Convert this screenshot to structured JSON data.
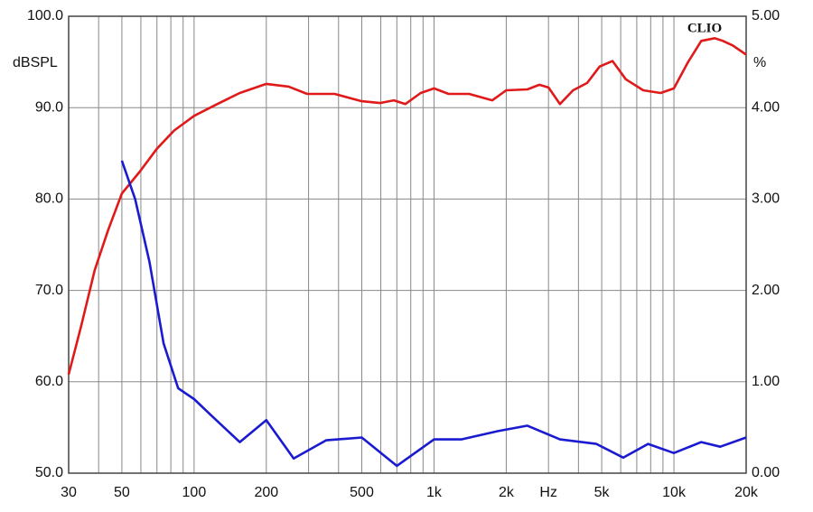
{
  "chart_data": {
    "type": "line",
    "xscale": "log",
    "watermark": "CLIO",
    "y_label": "dBSPL",
    "y2_label": "%",
    "xlim": [
      30,
      20000
    ],
    "ylim": [
      50,
      100
    ],
    "y2lim": [
      0,
      5
    ],
    "grid": true,
    "xticks": [
      30,
      50,
      100,
      200,
      500,
      {
        "value": 1000,
        "label": "1k"
      },
      {
        "value": 2000,
        "label": "2k"
      },
      {
        "value": 3000,
        "label": "Hz"
      },
      {
        "value": 5000,
        "label": "5k"
      },
      {
        "value": 10000,
        "label": "10k"
      },
      {
        "value": 20000,
        "label": "20k"
      }
    ],
    "xgrid": [
      30,
      40,
      50,
      60,
      70,
      80,
      90,
      100,
      200,
      300,
      400,
      500,
      600,
      700,
      800,
      900,
      1000,
      2000,
      3000,
      4000,
      5000,
      6000,
      7000,
      8000,
      9000,
      10000,
      20000
    ],
    "yticks": [
      {
        "value": 50,
        "label": "50.0"
      },
      {
        "value": 60,
        "label": "60.0"
      },
      {
        "value": 70,
        "label": "70.0"
      },
      {
        "value": 80,
        "label": "80.0"
      },
      {
        "value": 90,
        "label": "90.0"
      },
      {
        "value": 100,
        "label": "100.0"
      }
    ],
    "y2ticks": [
      {
        "value": 0,
        "label": "0.00"
      },
      {
        "value": 1,
        "label": "1.00"
      },
      {
        "value": 2,
        "label": "2.00"
      },
      {
        "value": 3,
        "label": "3.00"
      },
      {
        "value": 4,
        "label": "4.00"
      },
      {
        "value": 5,
        "label": "5.00"
      }
    ],
    "series": [
      {
        "color": "#e01a1a",
        "axis": "y",
        "x": [
          30,
          33.9,
          38.5,
          43.8,
          50,
          59.4,
          70,
          82.6,
          100,
          125,
          155,
          200,
          248,
          296,
          385,
          500,
          595,
          680,
          760,
          880,
          1000,
          1150,
          1400,
          1750,
          2000,
          2450,
          2750,
          3000,
          3350,
          3800,
          4350,
          4900,
          5550,
          6300,
          7450,
          8800,
          10000,
          11400,
          13000,
          14800,
          16000,
          17600,
          20000
        ],
        "values": [
          60.8,
          66.2,
          72.2,
          76.6,
          80.6,
          83.0,
          85.5,
          87.5,
          89.1,
          90.4,
          91.6,
          92.6,
          92.3,
          91.5,
          91.5,
          90.7,
          90.5,
          90.8,
          90.4,
          91.6,
          92.1,
          91.5,
          91.5,
          90.8,
          91.9,
          92.0,
          92.5,
          92.2,
          90.4,
          91.9,
          92.7,
          94.5,
          95.1,
          93.1,
          91.9,
          91.6,
          92.1,
          94.9,
          97.3,
          97.6,
          97.3,
          96.8,
          95.8
        ]
      },
      {
        "color": "#1a1ad0",
        "axis": "y2",
        "x": [
          50,
          56.8,
          65.2,
          74.6,
          85.8,
          100,
          118,
          155,
          200,
          260,
          355,
          500,
          700,
          1000,
          1300,
          1850,
          2450,
          3350,
          4750,
          6150,
          7800,
          10000,
          13000,
          15600,
          20000
        ],
        "values": [
          3.42,
          3.0,
          2.31,
          1.42,
          0.93,
          0.81,
          0.63,
          0.34,
          0.58,
          0.16,
          0.36,
          0.39,
          0.08,
          0.37,
          0.37,
          0.46,
          0.52,
          0.37,
          0.32,
          0.17,
          0.32,
          0.22,
          0.34,
          0.29,
          0.39
        ]
      }
    ]
  }
}
